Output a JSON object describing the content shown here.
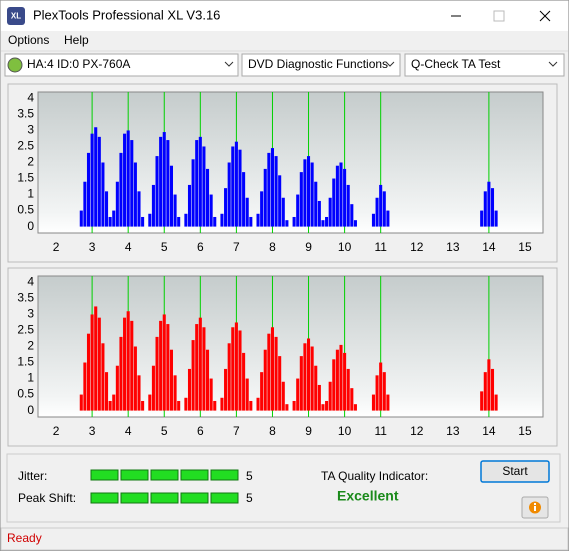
{
  "window": {
    "icon_text": "XL",
    "title": "PlexTools Professional XL V3.16"
  },
  "menu": [
    "Options",
    "Help"
  ],
  "toolbar": {
    "drive": "HA:4 ID:0  PX-760A",
    "function": "DVD Diagnostic Functions",
    "test": "Q-Check TA Test"
  },
  "chart_data": [
    {
      "type": "bar",
      "color": "#0000ff",
      "marker_color": "#00d000",
      "xlim": [
        1.5,
        15.5
      ],
      "ylim": [
        -0.2,
        4.2
      ],
      "xticks": [
        2,
        3,
        4,
        5,
        6,
        7,
        8,
        9,
        10,
        11,
        12,
        13,
        14,
        15
      ],
      "yticks": [
        0,
        0.5,
        1,
        1.5,
        2,
        2.5,
        3,
        3.5,
        4
      ],
      "markers": [
        3,
        4,
        5,
        6,
        7,
        8,
        9,
        10,
        11,
        14
      ],
      "x": [
        2.7,
        2.8,
        2.9,
        3.0,
        3.1,
        3.2,
        3.3,
        3.4,
        3.5,
        3.6,
        3.7,
        3.8,
        3.9,
        4.0,
        4.1,
        4.2,
        4.3,
        4.4,
        4.6,
        4.7,
        4.8,
        4.9,
        5.0,
        5.1,
        5.2,
        5.3,
        5.4,
        5.6,
        5.7,
        5.8,
        5.9,
        6.0,
        6.1,
        6.2,
        6.3,
        6.4,
        6.6,
        6.7,
        6.8,
        6.9,
        7.0,
        7.1,
        7.2,
        7.3,
        7.4,
        7.6,
        7.7,
        7.8,
        7.9,
        8.0,
        8.1,
        8.2,
        8.3,
        8.4,
        8.6,
        8.7,
        8.8,
        8.9,
        9.0,
        9.1,
        9.2,
        9.3,
        9.4,
        9.5,
        9.6,
        9.7,
        9.8,
        9.9,
        10.0,
        10.1,
        10.2,
        10.3,
        10.8,
        10.9,
        11.0,
        11.1,
        11.2,
        13.8,
        13.9,
        14.0,
        14.1,
        14.2
      ],
      "values": [
        0.5,
        1.4,
        2.3,
        2.9,
        3.1,
        2.8,
        2.0,
        1.1,
        0.3,
        0.5,
        1.4,
        2.3,
        2.9,
        3.0,
        2.7,
        2.0,
        1.1,
        0.3,
        0.4,
        1.3,
        2.2,
        2.8,
        2.95,
        2.7,
        1.9,
        1.0,
        0.3,
        0.4,
        1.3,
        2.1,
        2.7,
        2.8,
        2.5,
        1.8,
        1.0,
        0.3,
        0.4,
        1.2,
        2.0,
        2.5,
        2.65,
        2.4,
        1.7,
        0.9,
        0.3,
        0.4,
        1.1,
        1.8,
        2.3,
        2.45,
        2.2,
        1.6,
        0.9,
        0.2,
        0.3,
        1.0,
        1.7,
        2.1,
        2.2,
        2.0,
        1.4,
        0.8,
        0.2,
        0.3,
        0.9,
        1.5,
        1.9,
        2.0,
        1.8,
        1.3,
        0.7,
        0.2,
        0.4,
        0.9,
        1.3,
        1.1,
        0.5,
        0.5,
        1.1,
        1.4,
        1.2,
        0.5
      ]
    },
    {
      "type": "bar",
      "color": "#ff0000",
      "marker_color": "#00d000",
      "xlim": [
        1.5,
        15.5
      ],
      "ylim": [
        -0.2,
        4.2
      ],
      "xticks": [
        2,
        3,
        4,
        5,
        6,
        7,
        8,
        9,
        10,
        11,
        12,
        13,
        14,
        15
      ],
      "yticks": [
        0,
        0.5,
        1,
        1.5,
        2,
        2.5,
        3,
        3.5,
        4
      ],
      "markers": [
        3,
        4,
        5,
        6,
        7,
        8,
        9,
        10,
        11,
        14
      ],
      "x": [
        2.7,
        2.8,
        2.9,
        3.0,
        3.1,
        3.2,
        3.3,
        3.4,
        3.5,
        3.6,
        3.7,
        3.8,
        3.9,
        4.0,
        4.1,
        4.2,
        4.3,
        4.4,
        4.6,
        4.7,
        4.8,
        4.9,
        5.0,
        5.1,
        5.2,
        5.3,
        5.4,
        5.6,
        5.7,
        5.8,
        5.9,
        6.0,
        6.1,
        6.2,
        6.3,
        6.4,
        6.6,
        6.7,
        6.8,
        6.9,
        7.0,
        7.1,
        7.2,
        7.3,
        7.4,
        7.6,
        7.7,
        7.8,
        7.9,
        8.0,
        8.1,
        8.2,
        8.3,
        8.4,
        8.6,
        8.7,
        8.8,
        8.9,
        9.0,
        9.1,
        9.2,
        9.3,
        9.4,
        9.5,
        9.6,
        9.7,
        9.8,
        9.9,
        10.0,
        10.1,
        10.2,
        10.3,
        10.8,
        10.9,
        11.0,
        11.1,
        11.2,
        13.8,
        13.9,
        14.0,
        14.1,
        14.2
      ],
      "values": [
        0.5,
        1.5,
        2.4,
        3.0,
        3.25,
        2.9,
        2.1,
        1.2,
        0.3,
        0.5,
        1.4,
        2.3,
        2.9,
        3.1,
        2.8,
        2.0,
        1.1,
        0.3,
        0.5,
        1.4,
        2.3,
        2.8,
        3.0,
        2.7,
        1.9,
        1.1,
        0.3,
        0.4,
        1.3,
        2.2,
        2.7,
        2.9,
        2.6,
        1.9,
        1.0,
        0.3,
        0.4,
        1.3,
        2.1,
        2.6,
        2.75,
        2.5,
        1.8,
        1.0,
        0.3,
        0.4,
        1.2,
        1.9,
        2.4,
        2.6,
        2.3,
        1.7,
        0.9,
        0.2,
        0.3,
        1.0,
        1.7,
        2.1,
        2.25,
        2.0,
        1.4,
        0.8,
        0.2,
        0.3,
        0.9,
        1.6,
        1.9,
        2.05,
        1.8,
        1.3,
        0.7,
        0.2,
        0.5,
        1.1,
        1.5,
        1.2,
        0.5,
        0.6,
        1.2,
        1.6,
        1.3,
        0.5
      ]
    }
  ],
  "results": {
    "jitter_label": "Jitter:",
    "jitter_value": 5,
    "peak_label": "Peak Shift:",
    "peak_value": 5,
    "ta_label": "TA Quality Indicator:",
    "ta_value": "Excellent",
    "start": "Start"
  },
  "status": "Ready"
}
